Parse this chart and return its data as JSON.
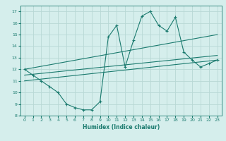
{
  "xlabel": "Humidex (Indice chaleur)",
  "bg_color": "#d5eeec",
  "grid_color": "#b8d8d5",
  "line_color": "#1a7a6e",
  "xlim": [
    -0.5,
    23.5
  ],
  "ylim": [
    8,
    17.5
  ],
  "xticks": [
    0,
    1,
    2,
    3,
    4,
    5,
    6,
    7,
    8,
    9,
    10,
    11,
    12,
    13,
    14,
    15,
    16,
    17,
    18,
    19,
    20,
    21,
    22,
    23
  ],
  "yticks": [
    8,
    9,
    10,
    11,
    12,
    13,
    14,
    15,
    16,
    17
  ],
  "series1_x": [
    0,
    1,
    2,
    3,
    4,
    5,
    6,
    7,
    8,
    9,
    10,
    11,
    12,
    13,
    14,
    15,
    16,
    17,
    18,
    19,
    20,
    21,
    22,
    23
  ],
  "series1_y": [
    12.0,
    11.5,
    11.0,
    10.5,
    10.0,
    9.0,
    8.7,
    8.5,
    8.5,
    9.2,
    14.8,
    15.8,
    12.2,
    14.5,
    16.6,
    17.0,
    15.8,
    15.3,
    16.5,
    13.5,
    12.8,
    12.2,
    12.5,
    12.8
  ],
  "series2_x": [
    0,
    23
  ],
  "series2_y": [
    12.0,
    15.0
  ],
  "series3_x": [
    0,
    23
  ],
  "series3_y": [
    11.5,
    13.2
  ],
  "series4_x": [
    0,
    23
  ],
  "series4_y": [
    11.0,
    12.8
  ]
}
